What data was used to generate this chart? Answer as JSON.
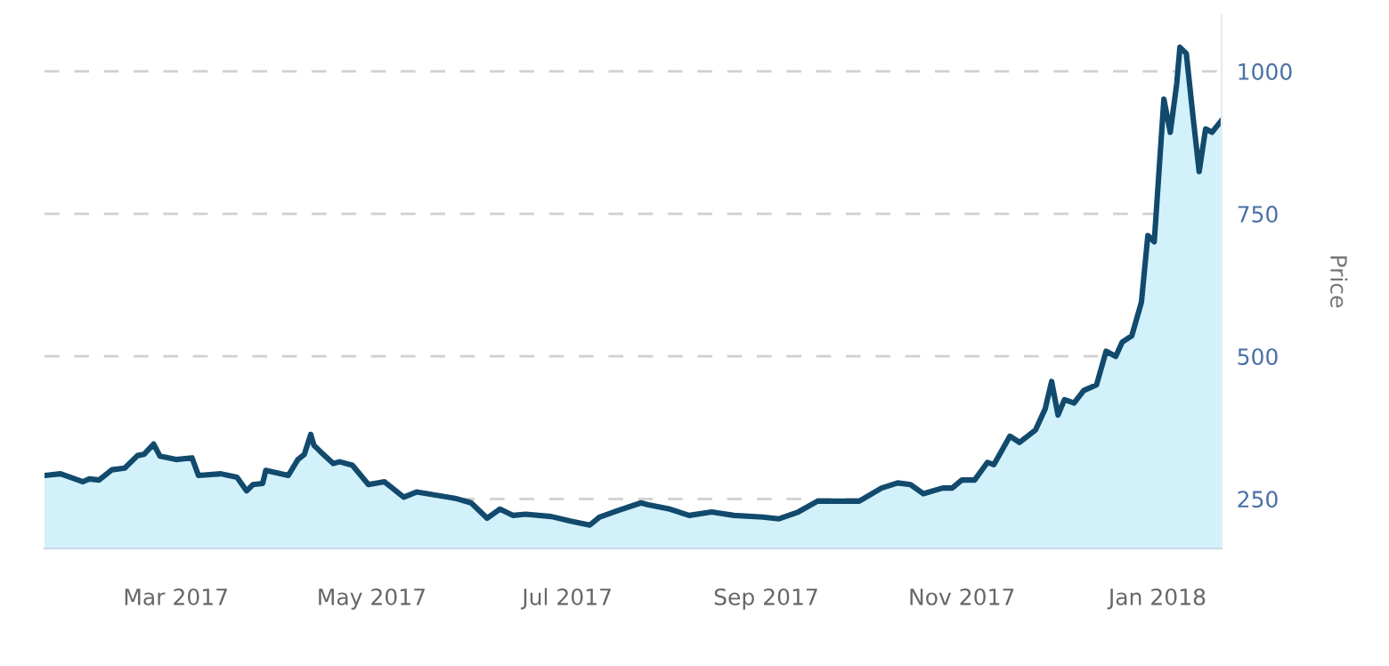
{
  "chart_data": {
    "type": "area",
    "ylabel": "Price",
    "x": [
      "2017-01-19",
      "2017-01-24",
      "2017-01-31",
      "2017-02-02",
      "2017-02-05",
      "2017-02-09",
      "2017-02-13",
      "2017-02-17",
      "2017-02-19",
      "2017-02-22",
      "2017-02-24",
      "2017-03-01",
      "2017-03-06",
      "2017-03-08",
      "2017-03-15",
      "2017-03-20",
      "2017-03-23",
      "2017-03-25",
      "2017-03-28",
      "2017-03-29",
      "2017-04-05",
      "2017-04-08",
      "2017-04-10",
      "2017-04-12",
      "2017-04-13",
      "2017-04-15",
      "2017-04-19",
      "2017-04-21",
      "2017-04-25",
      "2017-04-30",
      "2017-05-05",
      "2017-05-11",
      "2017-05-15",
      "2017-05-27",
      "2017-06-01",
      "2017-06-06",
      "2017-06-10",
      "2017-06-14",
      "2017-06-18",
      "2017-06-26",
      "2017-07-02",
      "2017-07-08",
      "2017-07-11",
      "2017-07-17",
      "2017-07-24",
      "2017-07-26",
      "2017-08-02",
      "2017-08-08",
      "2017-08-15",
      "2017-08-22",
      "2017-08-31",
      "2017-09-05",
      "2017-09-11",
      "2017-09-17",
      "2017-09-30",
      "2017-10-07",
      "2017-10-12",
      "2017-10-16",
      "2017-10-20",
      "2017-10-26",
      "2017-10-29",
      "2017-11-01",
      "2017-11-05",
      "2017-11-09",
      "2017-11-11",
      "2017-11-16",
      "2017-11-19",
      "2017-11-24",
      "2017-11-27",
      "2017-11-29",
      "2017-12-01",
      "2017-12-03",
      "2017-12-06",
      "2017-12-09",
      "2017-12-13",
      "2017-12-16",
      "2017-12-19",
      "2017-12-21",
      "2017-12-24",
      "2017-12-27",
      "2017-12-29",
      "2017-12-31",
      "2018-01-03",
      "2018-01-05",
      "2018-01-07",
      "2018-01-08",
      "2018-01-10",
      "2018-01-12",
      "2018-01-14",
      "2018-01-16",
      "2018-01-18",
      "2018-01-21"
    ],
    "series": [
      {
        "color": "#124a6e",
        "values": [
          291,
          294,
          280,
          285,
          283,
          301,
          304,
          326,
          328,
          346,
          325,
          319,
          322,
          291,
          294,
          288,
          264,
          275,
          277,
          300,
          291,
          319,
          328,
          363,
          344,
          333,
          312,
          315,
          309,
          275,
          280,
          253,
          262,
          251,
          243,
          216,
          232,
          221,
          223,
          219,
          211,
          204,
          218,
          230,
          243,
          240,
          232,
          221,
          227,
          221,
          218,
          215,
          227,
          246,
          246,
          269,
          278,
          275,
          259,
          269,
          269,
          283,
          283,
          314,
          310,
          360,
          349,
          371,
          408,
          456,
          397,
          424,
          418,
          440,
          450,
          509,
          500,
          525,
          536,
          595,
          712,
          701,
          951,
          893,
          978,
          1042,
          1031,
          925,
          824,
          899,
          893,
          914
        ]
      }
    ],
    "xlim": [
      "2017-01-19",
      "2018-01-21"
    ],
    "xticks": [
      {
        "value": "2017-03-01",
        "label": "Mar 2017"
      },
      {
        "value": "2017-05-01",
        "label": "May 2017"
      },
      {
        "value": "2017-07-01",
        "label": "Jul 2017"
      },
      {
        "value": "2017-09-01",
        "label": "Sep 2017"
      },
      {
        "value": "2017-11-01",
        "label": "Nov 2017"
      },
      {
        "value": "2018-01-01",
        "label": "Jan 2018"
      }
    ],
    "ylim": [
      163,
      1100
    ],
    "yticks": [
      250,
      500,
      750,
      1000
    ],
    "grid": "y",
    "line_style": "solid"
  }
}
